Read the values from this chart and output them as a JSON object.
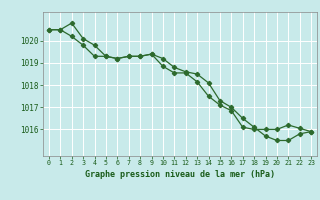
{
  "line1_x": [
    0,
    1,
    2,
    3,
    4,
    5,
    6,
    7,
    8,
    9,
    10,
    11,
    12,
    13,
    14,
    15,
    16,
    17,
    18,
    19,
    20,
    21,
    22,
    23
  ],
  "line1_y": [
    1020.5,
    1020.5,
    1020.2,
    1019.8,
    1019.3,
    1019.3,
    1019.2,
    1019.3,
    1019.3,
    1019.4,
    1019.2,
    1018.8,
    1018.6,
    1018.5,
    1018.1,
    1017.3,
    1017.0,
    1016.5,
    1016.1,
    1015.7,
    1015.5,
    1015.5,
    1015.8,
    1015.9
  ],
  "line2_x": [
    0,
    1,
    2,
    3,
    4,
    5,
    6,
    7,
    8,
    9,
    10,
    11,
    12,
    13,
    14,
    15,
    16,
    17,
    18,
    19,
    20,
    21,
    22,
    23
  ],
  "line2_y": [
    1020.5,
    1020.5,
    1020.8,
    1020.1,
    1019.8,
    1019.3,
    1019.2,
    1019.3,
    1019.3,
    1019.4,
    1018.85,
    1018.55,
    1018.55,
    1018.15,
    1017.5,
    1017.1,
    1016.85,
    1016.1,
    1016.0,
    1016.0,
    1016.0,
    1016.2,
    1016.05,
    1015.9
  ],
  "line_color": "#2d6a2d",
  "marker": "D",
  "markersize": 2.2,
  "bg_color": "#c8eaea",
  "grid_color": "#ffffff",
  "xlabel": "Graphe pression niveau de la mer (hPa)",
  "xlabel_color": "#1a5c1a",
  "tick_color": "#1a5c1a",
  "ylim": [
    1014.8,
    1021.3
  ],
  "xlim": [
    -0.5,
    23.5
  ],
  "yticks": [
    1016,
    1017,
    1018,
    1019,
    1020
  ],
  "xticks": [
    0,
    1,
    2,
    3,
    4,
    5,
    6,
    7,
    8,
    9,
    10,
    11,
    12,
    13,
    14,
    15,
    16,
    17,
    18,
    19,
    20,
    21,
    22,
    23
  ]
}
